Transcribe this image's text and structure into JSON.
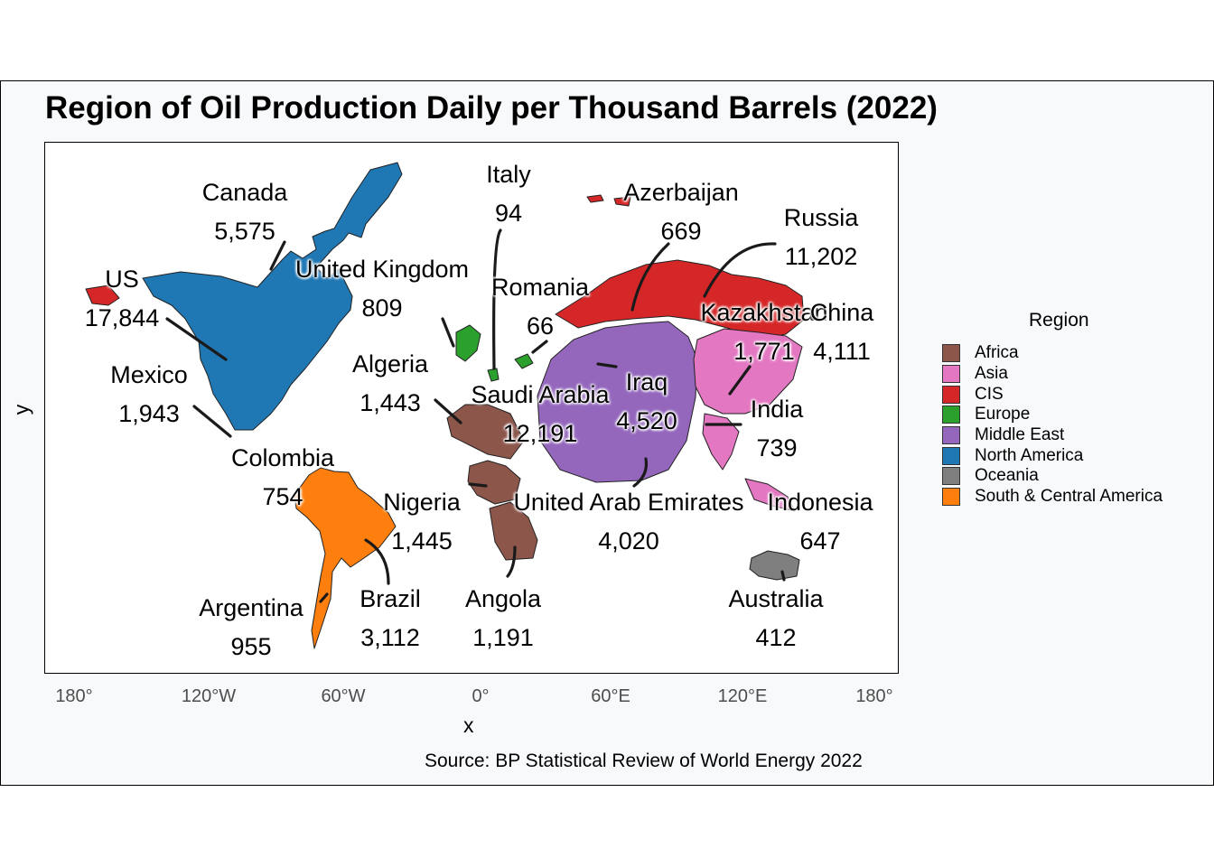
{
  "title": "Region of Oil Production Daily per Thousand Barrels (2022)",
  "source": "Source: BP Statistical Review of World Energy 2022",
  "axis": {
    "x_label": "x",
    "y_label": "y",
    "x_ticks": [
      "180°",
      "120°W",
      "60°W",
      "0°",
      "60°E",
      "120°E",
      "180°"
    ]
  },
  "legend": {
    "title": "Region",
    "items": [
      {
        "name": "Africa",
        "color": "#8c564b"
      },
      {
        "name": "Asia",
        "color": "#e377c2"
      },
      {
        "name": "CIS",
        "color": "#d62728"
      },
      {
        "name": "Europe",
        "color": "#2ca02c"
      },
      {
        "name": "Middle East",
        "color": "#9467bd"
      },
      {
        "name": "North America",
        "color": "#1f77b4"
      },
      {
        "name": "Oceania",
        "color": "#7f7f7f"
      },
      {
        "name": "South & Central America",
        "color": "#ff7f0e"
      }
    ]
  },
  "chart_data": {
    "type": "map",
    "title": "Region of Oil Production Daily per Thousand Barrels (2022)",
    "xlabel": "x",
    "ylabel": "y",
    "countries": [
      {
        "name": "Canada",
        "value": "5,575",
        "region": "North America"
      },
      {
        "name": "US",
        "value": "17,844",
        "region": "North America"
      },
      {
        "name": "Mexico",
        "value": "1,943",
        "region": "North America"
      },
      {
        "name": "Colombia",
        "value": "754",
        "region": "South & Central America"
      },
      {
        "name": "Brazil",
        "value": "3,112",
        "region": "South & Central America"
      },
      {
        "name": "Argentina",
        "value": "955",
        "region": "South & Central America"
      },
      {
        "name": "United Kingdom",
        "value": "809",
        "region": "Europe"
      },
      {
        "name": "Italy",
        "value": "94",
        "region": "Europe"
      },
      {
        "name": "Romania",
        "value": "66",
        "region": "Europe"
      },
      {
        "name": "Algeria",
        "value": "1,443",
        "region": "Africa"
      },
      {
        "name": "Nigeria",
        "value": "1,445",
        "region": "Africa"
      },
      {
        "name": "Angola",
        "value": "1,191",
        "region": "Africa"
      },
      {
        "name": "Saudi Arabia",
        "value": "12,191",
        "region": "Middle East"
      },
      {
        "name": "Iraq",
        "value": "4,520",
        "region": "Middle East"
      },
      {
        "name": "United Arab Emirates",
        "value": "4,020",
        "region": "Middle East"
      },
      {
        "name": "Azerbaijan",
        "value": "669",
        "region": "CIS"
      },
      {
        "name": "Russia",
        "value": "11,202",
        "region": "CIS"
      },
      {
        "name": "Kazakhstan",
        "value": "1,771",
        "region": "CIS"
      },
      {
        "name": "China",
        "value": "4,111",
        "region": "Asia"
      },
      {
        "name": "India",
        "value": "739",
        "region": "Asia"
      },
      {
        "name": "Indonesia",
        "value": "647",
        "region": "Asia"
      },
      {
        "name": "Australia",
        "value": "412",
        "region": "Oceania"
      }
    ]
  }
}
